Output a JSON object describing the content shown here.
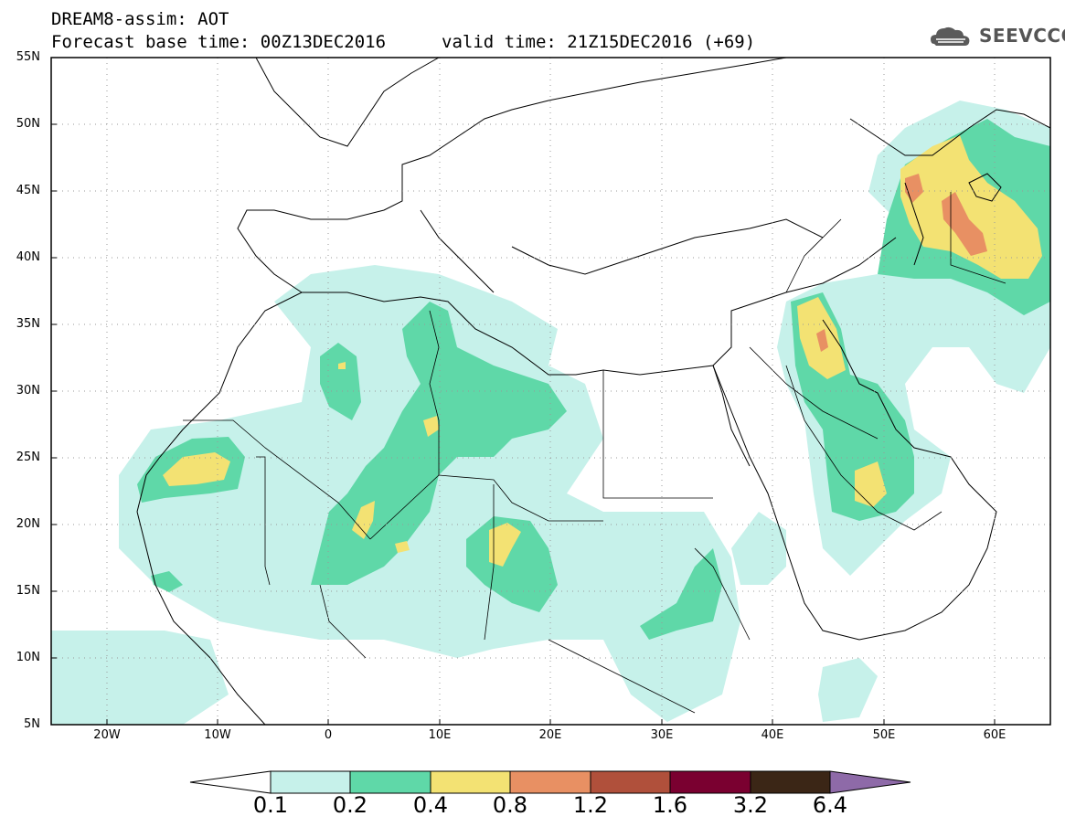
{
  "title": {
    "line1": "DREAM8-assim: AOT",
    "base_time": "Forecast base time: 00Z13DEC2016",
    "valid_time": "valid time: 21Z15DEC2016 (+69)"
  },
  "logo": {
    "text": "SEEVCCC",
    "icon": "cloud-icon"
  },
  "axes": {
    "lat_ticks": [
      "55N",
      "50N",
      "45N",
      "40N",
      "35N",
      "30N",
      "25N",
      "20N",
      "15N",
      "10N",
      "5N"
    ],
    "lon_ticks": [
      "20W",
      "10W",
      "0",
      "10E",
      "20E",
      "30E",
      "40E",
      "50E",
      "60E"
    ],
    "lat_range": [
      5,
      55
    ],
    "lon_range": [
      -25,
      65
    ]
  },
  "legend": {
    "colors": [
      "#ffffff",
      "#c6f1ea",
      "#5fd8a8",
      "#f3e273",
      "#e89063",
      "#b0503b",
      "#7a0030",
      "#3b2616",
      "#8e6aa8"
    ],
    "labels": [
      "0.1",
      "0.2",
      "0.4",
      "0.8",
      "1.2",
      "1.6",
      "3.2",
      "6.4"
    ]
  }
}
